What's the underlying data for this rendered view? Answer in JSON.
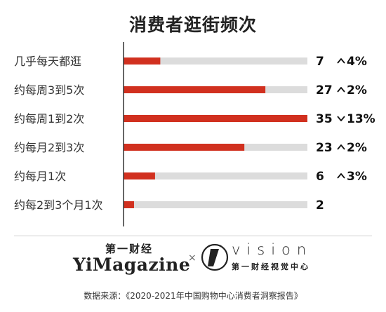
{
  "chart_data": {
    "type": "bar",
    "orientation": "horizontal",
    "title": "消费者逛街频次",
    "categories": [
      "几乎每天都逛",
      "约每周3到5次",
      "约每周1到2次",
      "约每月2到3次",
      "约每月1次",
      "约每2到3个月1次"
    ],
    "values": [
      7,
      27,
      35,
      23,
      6,
      2
    ],
    "changes": [
      {
        "direction": "up",
        "text": "4%"
      },
      {
        "direction": "up",
        "text": "2%"
      },
      {
        "direction": "down",
        "text": "13%"
      },
      {
        "direction": "up",
        "text": "2%"
      },
      {
        "direction": "up",
        "text": "3%"
      },
      null
    ],
    "xlim": [
      0,
      35
    ],
    "grid": false,
    "colors": {
      "bar": "#d1301f",
      "track": "#dcdcdc",
      "axis": "#333333"
    }
  },
  "branding": {
    "left_cn": "第一财经",
    "left_en": "YiMagazine",
    "separator": "×",
    "right_en": "vision",
    "right_cn": "第一财经视觉中心"
  },
  "source": "数据来源：《2020-2021年中国购物中心消费者洞察报告》"
}
